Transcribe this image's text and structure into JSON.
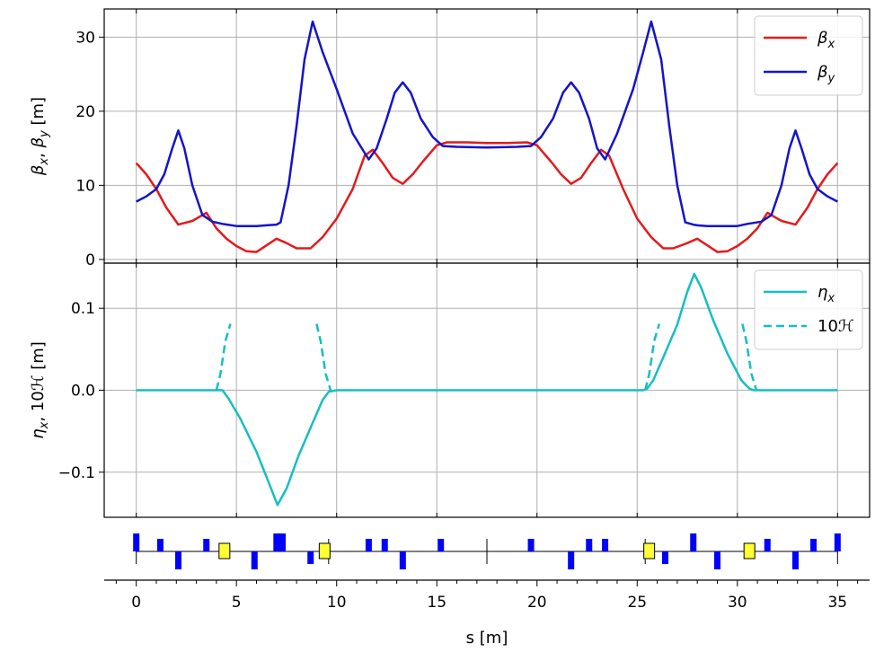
{
  "chart_data": [
    {
      "type": "line",
      "panel": "beta",
      "ylabel": "βx, βy [m]",
      "ylabel_parts": {
        "b1": "β",
        "s1": "x",
        "sep": ", ",
        "b2": "β",
        "s2": "y",
        "unit": " [m]"
      },
      "xlim": [
        -1.6,
        36.6
      ],
      "ylim": [
        -0.5,
        33.8
      ],
      "xticks": [
        0,
        5,
        10,
        15,
        20,
        25,
        30,
        35
      ],
      "yticks": [
        0,
        10,
        20,
        30
      ],
      "grid": true,
      "legend_position": "top-right",
      "series": [
        {
          "name": "βx",
          "name_parts": {
            "base": "β",
            "sub": "x"
          },
          "color": "#e31a1c",
          "style": "solid",
          "x": [
            0,
            0.5,
            1.0,
            1.5,
            2.1,
            2.8,
            3.5,
            4.0,
            4.5,
            5.0,
            5.5,
            6.0,
            6.5,
            7.0,
            7.5,
            8.0,
            8.7,
            9.3,
            10.0,
            10.8,
            11.4,
            11.8,
            12.3,
            12.8,
            13.3,
            13.8,
            14.3,
            15.0,
            15.5,
            16.5,
            17.5,
            18.5,
            19.5,
            20.0,
            20.7,
            21.2,
            21.7,
            22.2,
            22.7,
            23.2,
            23.6,
            24.3,
            25.0,
            25.7,
            26.3,
            26.8,
            27.5,
            28.0,
            28.5,
            29.0,
            29.5,
            30.0,
            30.5,
            31.0,
            31.5,
            32.2,
            32.9,
            33.5,
            34.0,
            34.5,
            35.0
          ],
          "y": [
            13,
            11.5,
            9.5,
            7,
            4.7,
            5.2,
            6.3,
            4.2,
            2.8,
            1.8,
            1.1,
            1.0,
            1.9,
            2.8,
            2.2,
            1.5,
            1.5,
            3,
            5.5,
            9.5,
            14,
            14.8,
            13,
            11,
            10.2,
            11.5,
            13.2,
            15.4,
            15.8,
            15.8,
            15.7,
            15.7,
            15.8,
            15.4,
            13.2,
            11.5,
            10.2,
            11,
            13,
            14.8,
            14,
            9.5,
            5.5,
            3,
            1.5,
            1.5,
            2.2,
            2.8,
            1.9,
            1.0,
            1.1,
            1.8,
            2.8,
            4.2,
            6.3,
            5.2,
            4.7,
            7,
            9.5,
            11.5,
            13
          ]
        },
        {
          "name": "βy",
          "name_parts": {
            "base": "β",
            "sub": "y"
          },
          "color": "#1414c8",
          "style": "solid",
          "x": [
            0,
            0.5,
            1.0,
            1.4,
            1.8,
            2.1,
            2.4,
            2.8,
            3.3,
            3.8,
            4.3,
            5.0,
            6.0,
            6.5,
            7.0,
            7.2,
            7.6,
            8.0,
            8.4,
            8.8,
            9.3,
            10.0,
            10.8,
            11.6,
            12.0,
            12.5,
            12.9,
            13.3,
            13.7,
            14.2,
            14.8,
            15.3,
            16.0,
            17.5,
            19.0,
            19.7,
            20.2,
            20.8,
            21.3,
            21.7,
            22.1,
            22.6,
            23.0,
            23.4,
            24.0,
            24.8,
            25.3,
            25.7,
            26.2,
            26.6,
            27.0,
            27.4,
            27.8,
            28.0,
            28.5,
            29.0,
            30.0,
            30.5,
            31.2,
            31.7,
            32.2,
            32.6,
            32.9,
            33.2,
            33.6,
            34.0,
            34.5,
            35.0
          ],
          "y": [
            7.8,
            8.5,
            9.5,
            11.5,
            15,
            17.4,
            15,
            10,
            6,
            5.1,
            4.8,
            4.5,
            4.5,
            4.6,
            4.7,
            5.0,
            10,
            18,
            27,
            32.1,
            28,
            23,
            17,
            13.5,
            15,
            19,
            22.5,
            23.9,
            22.5,
            19,
            16.5,
            15.3,
            15.2,
            15.1,
            15.2,
            15.3,
            16.5,
            19,
            22.5,
            23.9,
            22.5,
            19,
            15,
            13.5,
            17,
            23,
            28,
            32.1,
            27,
            18,
            10,
            5.0,
            4.7,
            4.6,
            4.5,
            4.5,
            4.5,
            4.8,
            5.1,
            6,
            10,
            15,
            17.4,
            15,
            11.5,
            9.5,
            8.5,
            7.8
          ]
        }
      ]
    },
    {
      "type": "line",
      "panel": "dispersion",
      "ylabel": "ηx, 10ℋ [m]",
      "ylabel_parts": {
        "b1": "η",
        "s1": "x",
        "rest": ", 10ℋ [m]"
      },
      "xlabel": "s [m]",
      "xlim": [
        -1.6,
        36.6
      ],
      "ylim": [
        -0.155,
        0.155
      ],
      "xticks": [
        0,
        5,
        10,
        15,
        20,
        25,
        30,
        35
      ],
      "xtick_labels": [
        "0",
        "5",
        "10",
        "15",
        "20",
        "25",
        "30",
        "35"
      ],
      "yticks": [
        0.1,
        0.0,
        -0.1
      ],
      "ytick_labels": [
        "0.1",
        "0.0",
        "−0.1"
      ],
      "grid": true,
      "legend_position": "top-right",
      "series": [
        {
          "name": "ηx",
          "name_parts": {
            "base": "η",
            "sub": "x"
          },
          "color": "#17bec0",
          "style": "solid",
          "x": [
            0,
            4.0,
            4.3,
            4.6,
            5.2,
            6.0,
            6.6,
            7.05,
            7.5,
            8.1,
            8.8,
            9.3,
            9.6,
            10.0,
            25.3,
            25.5,
            25.8,
            26.3,
            27.0,
            27.5,
            27.85,
            28.2,
            28.8,
            29.5,
            30.2,
            30.6,
            30.8,
            35.0
          ],
          "y": [
            0,
            0,
            0.0,
            -0.01,
            -0.035,
            -0.075,
            -0.112,
            -0.14,
            -0.12,
            -0.08,
            -0.04,
            -0.012,
            -0.002,
            0,
            0,
            0.002,
            0.012,
            0.04,
            0.08,
            0.12,
            0.142,
            0.125,
            0.085,
            0.045,
            0.012,
            0.002,
            0,
            0
          ]
        },
        {
          "name": "10ℋ",
          "color": "#17bec0",
          "style": "dashed",
          "x": [
            4.0,
            4.2,
            4.45,
            4.7,
            9.0,
            9.2,
            9.45,
            9.7,
            25.4,
            25.6,
            25.85,
            26.1,
            30.25,
            30.45,
            30.7,
            30.95
          ],
          "y": [
            0,
            0.02,
            0.06,
            0.081,
            0.081,
            0.06,
            0.02,
            0,
            0,
            0.02,
            0.06,
            0.081,
            0.081,
            0.06,
            0.02,
            0
          ]
        }
      ]
    },
    {
      "type": "lattice",
      "panel": "lattice",
      "quadrupoles": [
        {
          "s": 0.0,
          "side": "up",
          "tall": true
        },
        {
          "s": 1.2,
          "side": "up",
          "tall": false
        },
        {
          "s": 2.1,
          "side": "down",
          "tall": true
        },
        {
          "s": 3.5,
          "side": "up",
          "tall": false
        },
        {
          "s": 5.9,
          "side": "down",
          "tall": true
        },
        {
          "s": 7.0,
          "side": "up",
          "tall": true
        },
        {
          "s": 7.3,
          "side": "up",
          "tall": true
        },
        {
          "s": 8.7,
          "side": "down",
          "tall": false
        },
        {
          "s": 11.6,
          "side": "up",
          "tall": false
        },
        {
          "s": 12.4,
          "side": "up",
          "tall": false
        },
        {
          "s": 13.3,
          "side": "down",
          "tall": true
        },
        {
          "s": 15.2,
          "side": "up",
          "tall": false
        },
        {
          "s": 19.7,
          "side": "up",
          "tall": false
        },
        {
          "s": 21.7,
          "side": "down",
          "tall": true
        },
        {
          "s": 22.6,
          "side": "up",
          "tall": false
        },
        {
          "s": 23.4,
          "side": "up",
          "tall": false
        },
        {
          "s": 26.4,
          "side": "down",
          "tall": false
        },
        {
          "s": 27.8,
          "side": "up",
          "tall": true
        },
        {
          "s": 29.0,
          "side": "down",
          "tall": true
        },
        {
          "s": 31.5,
          "side": "up",
          "tall": false
        },
        {
          "s": 32.9,
          "side": "down",
          "tall": true
        },
        {
          "s": 33.8,
          "side": "up",
          "tall": false
        },
        {
          "s": 35.0,
          "side": "up",
          "tall": true
        }
      ],
      "dipoles": [
        4.4,
        9.4,
        25.6,
        30.6
      ],
      "dividers": [
        9.6,
        17.5,
        25.4
      ],
      "colors": {
        "quad": "#0000ff",
        "dipole": "#ffff33",
        "line": "#000000"
      }
    }
  ]
}
